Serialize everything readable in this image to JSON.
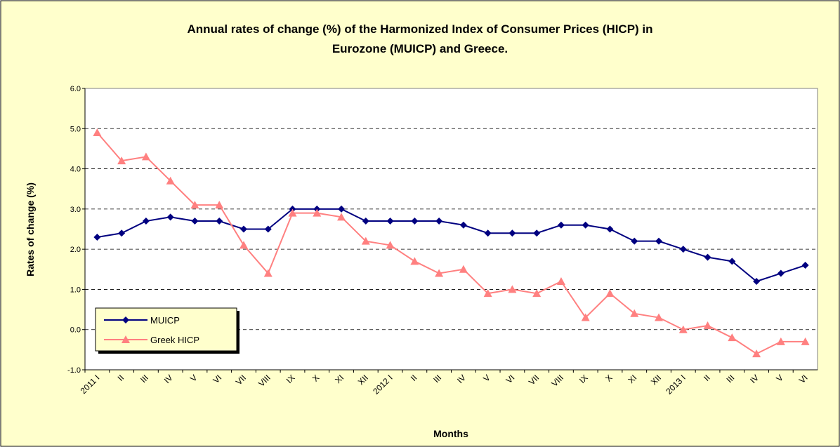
{
  "chart_data": {
    "type": "line",
    "title": "Annual rates of change (%) of the Harmonized Index of Consumer Prices (HICP) in Eurozone (MUICP) and Greece.",
    "x_label": "Months",
    "y_label": "Rates of change (%)",
    "categories": [
      "2011 I",
      "II",
      "III",
      "IV",
      "V",
      "VI",
      "VII",
      "VIII",
      "IX",
      "X",
      "XI",
      "XII",
      "2012 I",
      "II",
      "III",
      "IV",
      "V",
      "VI",
      "VII",
      "VIII",
      "IX",
      "X",
      "XI",
      "XII",
      "2013 I",
      "II",
      "III",
      "IV",
      "V",
      "VI"
    ],
    "series": [
      {
        "name": "MUICP",
        "color": "#000080",
        "marker": "diamond",
        "values": [
          2.3,
          2.4,
          2.7,
          2.8,
          2.7,
          2.7,
          2.5,
          2.5,
          3.0,
          3.0,
          3.0,
          2.7,
          2.7,
          2.7,
          2.7,
          2.6,
          2.4,
          2.4,
          2.4,
          2.6,
          2.6,
          2.5,
          2.2,
          2.2,
          2.0,
          1.8,
          1.7,
          1.2,
          1.4,
          1.6
        ]
      },
      {
        "name": "Greek HICP",
        "color": "#ff8080",
        "marker": "triangle",
        "values": [
          4.9,
          4.2,
          4.3,
          3.7,
          3.1,
          3.1,
          2.1,
          1.4,
          2.9,
          2.9,
          2.8,
          2.2,
          2.1,
          1.7,
          1.4,
          1.5,
          0.9,
          1.0,
          0.9,
          1.2,
          0.3,
          0.9,
          0.4,
          0.3,
          0.0,
          0.1,
          -0.2,
          -0.6,
          -0.3,
          -0.3
        ]
      }
    ],
    "ylim": [
      -1,
      6
    ],
    "yticks": [
      {
        "value": -1,
        "label": "-1.0"
      },
      {
        "value": 0,
        "label": "0.0"
      },
      {
        "value": 1,
        "label": "1.0"
      },
      {
        "value": 2,
        "label": "2.0"
      },
      {
        "value": 3,
        "label": "3.0"
      },
      {
        "value": 4,
        "label": "4.0"
      },
      {
        "value": 5,
        "label": "5.0"
      },
      {
        "value": 6,
        "label": "6.0"
      }
    ],
    "grid": true,
    "legend": "lower left"
  }
}
